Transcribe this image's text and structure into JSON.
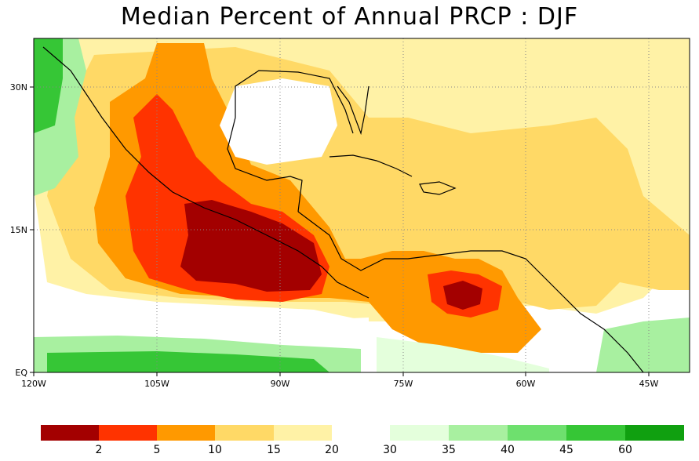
{
  "title": "Median Percent of Annual PRCP  :  DJF",
  "axes": {
    "x_ticks": [
      "120W",
      "105W",
      "90W",
      "75W",
      "60W",
      "45W"
    ],
    "y_ticks": [
      "30N",
      "15N",
      "EQ"
    ]
  },
  "colorbar": {
    "labels": [
      "2",
      "5",
      "10",
      "15",
      "20",
      "30",
      "35",
      "40",
      "45",
      "60"
    ],
    "colors": [
      "#a30000",
      "#ff3300",
      "#ff9900",
      "#ffd966",
      "#fff2a6",
      "#e4ffdc",
      "#a8f0a0",
      "#6ee06e",
      "#36c636",
      "#10a010"
    ]
  }
}
